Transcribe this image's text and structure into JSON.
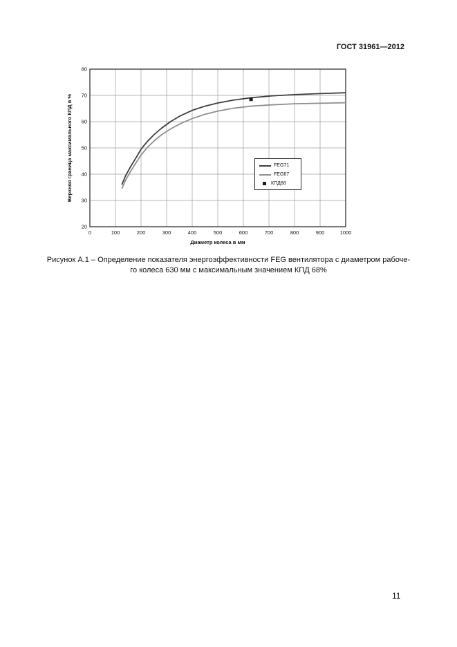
{
  "header": {
    "title": "ГОСТ 31961—2012"
  },
  "figure": {
    "caption_line1": "Рисунок А.1 – Определение показателя энергоэффективности FEG вентилятора с диаметром рабоче-",
    "caption_line2": "го колеса 630 мм с максимальным значением КПД 68%"
  },
  "footer": {
    "page_number": "11"
  },
  "chart_data": {
    "type": "line",
    "title": "",
    "xlabel": "Диаметр колеса в мм",
    "ylabel": "Верхняя граница максимального КПД в %",
    "xlim": [
      0,
      1000
    ],
    "ylim": [
      20,
      80
    ],
    "x_ticks": [
      0,
      100,
      200,
      300,
      400,
      500,
      600,
      700,
      800,
      900,
      1000
    ],
    "y_ticks": [
      20,
      30,
      40,
      50,
      60,
      70,
      80
    ],
    "grid": true,
    "grid_color": "#9c9c9c",
    "border_color": "#222222",
    "legend_position": "middle-right",
    "series": [
      {
        "name": "FEG71",
        "color": "#3c3c3c",
        "x": [
          125,
          140,
          160,
          180,
          200,
          225,
          250,
          280,
          315,
          355,
          400,
          450,
          500,
          560,
          630,
          710,
          800,
          900,
          1000
        ],
        "y": [
          36,
          39.5,
          43,
          46.2,
          49.5,
          52.5,
          55,
          57.5,
          60,
          62.3,
          64.3,
          65.9,
          67.1,
          68.2,
          69.1,
          69.8,
          70.3,
          70.7,
          71
        ]
      },
      {
        "name": "FEG67",
        "color": "#8e8e8e",
        "x": [
          125,
          140,
          160,
          180,
          200,
          225,
          250,
          280,
          315,
          355,
          400,
          450,
          500,
          560,
          630,
          710,
          800,
          900,
          1000
        ],
        "y": [
          34.5,
          37.8,
          41.2,
          44.3,
          47.3,
          50.2,
          52.6,
          55,
          57.2,
          59.3,
          61.2,
          62.8,
          64,
          65.1,
          65.9,
          66.4,
          66.8,
          67,
          67.2
        ]
      }
    ],
    "points": [
      {
        "name": "КПД68",
        "x": 630,
        "y": 68.5,
        "marker": "square",
        "color": "#1a1a1a"
      }
    ]
  }
}
